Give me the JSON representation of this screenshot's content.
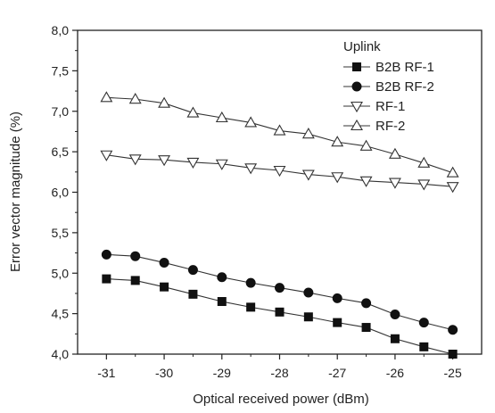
{
  "chart_data": {
    "type": "line",
    "xlabel": "Optical received power (dBm)",
    "ylabel": "Error vector magnitude (%)",
    "xlim": [
      -31.5,
      -24.5
    ],
    "ylim": [
      4.0,
      8.0
    ],
    "xticks": [
      "-31",
      "-30",
      "-29",
      "-28",
      "-27",
      "-26",
      "-25"
    ],
    "xtick_values": [
      -31,
      -30,
      -29,
      -28,
      -27,
      -26,
      -25
    ],
    "yticks": [
      "4,0",
      "4,5",
      "5,0",
      "5,5",
      "6,0",
      "6,5",
      "7,0",
      "7,5",
      "8,0"
    ],
    "ytick_values": [
      4.0,
      4.5,
      5.0,
      5.5,
      6.0,
      6.5,
      7.0,
      7.5,
      8.0
    ],
    "legend_title": "Uplink",
    "legend_position": "top-right",
    "grid": false,
    "x": [
      -31,
      -30.5,
      -30,
      -29.5,
      -29,
      -28.5,
      -28,
      -27.5,
      -27,
      -26.5,
      -26,
      -25.5,
      -25
    ],
    "series": [
      {
        "name": "B2B RF-1",
        "marker": "square-filled",
        "values": [
          4.93,
          4.91,
          4.83,
          4.74,
          4.65,
          4.58,
          4.52,
          4.46,
          4.39,
          4.33,
          4.19,
          4.09,
          4.0
        ]
      },
      {
        "name": "B2B RF-2",
        "marker": "circle-filled",
        "values": [
          5.23,
          5.21,
          5.13,
          5.04,
          4.95,
          4.88,
          4.82,
          4.76,
          4.69,
          4.63,
          4.49,
          4.39,
          4.3
        ]
      },
      {
        "name": "RF-1",
        "marker": "triangle-down-open",
        "values": [
          6.46,
          6.41,
          6.4,
          6.37,
          6.35,
          6.3,
          6.27,
          6.22,
          6.19,
          6.14,
          6.12,
          6.1,
          6.07
        ]
      },
      {
        "name": "RF-2",
        "marker": "triangle-up-open",
        "values": [
          7.17,
          7.15,
          7.1,
          6.98,
          6.92,
          6.86,
          6.76,
          6.72,
          6.62,
          6.57,
          6.47,
          6.36,
          6.24
        ]
      }
    ]
  }
}
